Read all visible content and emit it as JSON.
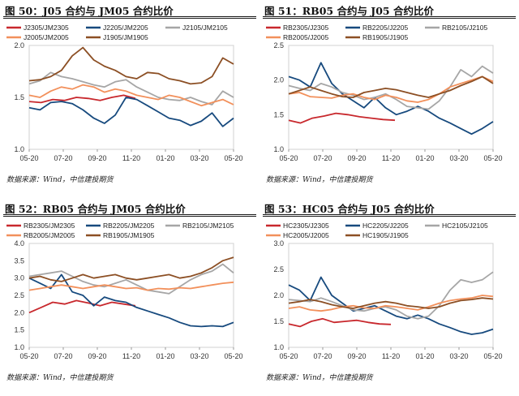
{
  "source_label": "数据来源：Wind，中信建投期货",
  "colors": {
    "s1": "#c8282d",
    "s2": "#174a7e",
    "s3": "#a6a6a6",
    "s4": "#f2905b",
    "s5": "#8c4f24"
  },
  "chart_data": [
    {
      "type": "line",
      "title": "图 50：J05 合约与 JM05 合约比价",
      "ylim": [
        1.0,
        2.0
      ],
      "yticks": [
        "1.0",
        "1.5",
        "2.0"
      ],
      "xticks": [
        "05-20",
        "07-20",
        "09-20",
        "11-20",
        "01-20",
        "03-20",
        "05-20"
      ],
      "series": [
        {
          "name": "J2305/JM2305",
          "end": 0.52,
          "values": [
            1.46,
            1.45,
            1.48,
            1.47,
            1.5,
            1.49,
            1.47,
            1.5,
            1.52,
            1.49
          ]
        },
        {
          "name": "J2205/JM2205",
          "end": 1.0,
          "values": [
            1.4,
            1.38,
            1.45,
            1.46,
            1.44,
            1.38,
            1.3,
            1.25,
            1.33,
            1.5,
            1.48,
            1.42,
            1.36,
            1.3,
            1.28,
            1.23,
            1.27,
            1.35,
            1.22,
            1.3
          ]
        },
        {
          "name": "J2105/JM2105",
          "end": 1.0,
          "values": [
            1.63,
            1.66,
            1.74,
            1.7,
            1.68,
            1.65,
            1.62,
            1.6,
            1.65,
            1.67,
            1.6,
            1.55,
            1.5,
            1.48,
            1.47,
            1.5,
            1.46,
            1.43,
            1.56,
            1.5
          ]
        },
        {
          "name": "J2005/JM2005",
          "end": 1.0,
          "values": [
            1.52,
            1.5,
            1.56,
            1.6,
            1.58,
            1.62,
            1.6,
            1.55,
            1.58,
            1.56,
            1.52,
            1.5,
            1.48,
            1.52,
            1.5,
            1.46,
            1.42,
            1.45,
            1.48,
            1.43
          ]
        },
        {
          "name": "J1905/JM1905",
          "end": 1.0,
          "values": [
            1.66,
            1.67,
            1.7,
            1.76,
            1.9,
            1.98,
            1.86,
            1.8,
            1.76,
            1.7,
            1.68,
            1.74,
            1.73,
            1.68,
            1.66,
            1.63,
            1.64,
            1.7,
            1.88,
            1.82
          ]
        }
      ]
    },
    {
      "type": "line",
      "title": "图 51：RB05 合约与 J05 合约比价",
      "ylim": [
        1.0,
        2.5
      ],
      "yticks": [
        "1.0",
        "1.5",
        "2.0",
        "2.5"
      ],
      "xticks": [
        "05-20",
        "07-20",
        "09-20",
        "11-20",
        "01-20",
        "03-20",
        "05-20"
      ],
      "series": [
        {
          "name": "RB2305/J2305",
          "end": 0.52,
          "values": [
            1.42,
            1.38,
            1.45,
            1.48,
            1.52,
            1.5,
            1.47,
            1.45,
            1.43,
            1.42
          ]
        },
        {
          "name": "RB2205/J2205",
          "end": 1.0,
          "values": [
            2.05,
            2.0,
            1.9,
            2.25,
            1.95,
            1.8,
            1.7,
            1.6,
            1.75,
            1.6,
            1.5,
            1.55,
            1.62,
            1.55,
            1.45,
            1.38,
            1.3,
            1.22,
            1.3,
            1.4
          ]
        },
        {
          "name": "RB2105/J2105",
          "end": 1.0,
          "values": [
            1.92,
            1.88,
            1.85,
            1.95,
            1.9,
            1.82,
            1.78,
            1.72,
            1.75,
            1.8,
            1.72,
            1.62,
            1.6,
            1.58,
            1.7,
            1.9,
            2.15,
            2.05,
            2.2,
            2.1
          ]
        },
        {
          "name": "RB2005/J2005",
          "end": 1.0,
          "values": [
            1.8,
            1.82,
            1.76,
            1.75,
            1.74,
            1.78,
            1.8,
            1.75,
            1.72,
            1.78,
            1.75,
            1.7,
            1.68,
            1.72,
            1.8,
            1.9,
            1.95,
            2.0,
            2.05,
            1.98
          ]
        },
        {
          "name": "RB1905/J1905",
          "end": 1.0,
          "values": [
            1.8,
            1.85,
            1.9,
            1.85,
            1.8,
            1.76,
            1.75,
            1.82,
            1.85,
            1.88,
            1.86,
            1.82,
            1.78,
            1.75,
            1.8,
            1.85,
            1.92,
            1.98,
            2.05,
            1.95
          ]
        }
      ]
    },
    {
      "type": "line",
      "title": "图 52：RB05 合约与 JM05 合约比价",
      "ylim": [
        1.0,
        4.0
      ],
      "yticks": [
        "1.0",
        "1.5",
        "2.0",
        "2.5",
        "3.0",
        "3.5",
        "4.0"
      ],
      "xticks": [
        "05-20",
        "07-20",
        "09-20",
        "11-20",
        "01-20",
        "03-20",
        "05-20"
      ],
      "series": [
        {
          "name": "RB2305/JM2305",
          "end": 0.52,
          "values": [
            2.0,
            2.15,
            2.3,
            2.25,
            2.35,
            2.28,
            2.2,
            2.3,
            2.25,
            2.2
          ]
        },
        {
          "name": "RB2205/JM2205",
          "end": 1.0,
          "values": [
            3.0,
            2.85,
            2.7,
            3.1,
            2.6,
            2.5,
            2.2,
            2.45,
            2.35,
            2.3,
            2.15,
            2.05,
            1.95,
            1.85,
            1.72,
            1.62,
            1.6,
            1.62,
            1.6,
            1.72
          ]
        },
        {
          "name": "RB2105/JM2105",
          "end": 1.0,
          "values": [
            3.05,
            3.1,
            3.15,
            3.2,
            3.05,
            2.9,
            2.8,
            2.75,
            2.85,
            2.95,
            2.8,
            2.65,
            2.6,
            2.55,
            2.75,
            2.95,
            3.1,
            3.2,
            3.4,
            3.15
          ]
        },
        {
          "name": "RB2005/JM2005",
          "end": 1.0,
          "values": [
            2.65,
            2.7,
            2.75,
            2.8,
            2.75,
            2.7,
            2.75,
            2.8,
            2.75,
            2.7,
            2.72,
            2.65,
            2.7,
            2.68,
            2.72,
            2.7,
            2.75,
            2.8,
            2.85,
            2.88
          ]
        },
        {
          "name": "RB1905/JM1905",
          "end": 1.0,
          "values": [
            3.0,
            3.05,
            2.95,
            2.9,
            3.0,
            3.1,
            3.0,
            3.05,
            3.1,
            3.0,
            2.95,
            3.0,
            3.05,
            3.1,
            3.0,
            3.05,
            3.15,
            3.3,
            3.5,
            3.6
          ]
        }
      ]
    },
    {
      "type": "line",
      "title": "图 53：HC05 合约与 J05 合约比价",
      "ylim": [
        1.0,
        3.0
      ],
      "yticks": [
        "1.0",
        "1.5",
        "2.0",
        "2.5",
        "3.0"
      ],
      "xticks": [
        "05-20",
        "07-20",
        "09-20",
        "11-20",
        "01-20",
        "03-20",
        "05-20"
      ],
      "series": [
        {
          "name": "HC2305/J2305",
          "end": 0.5,
          "values": [
            1.45,
            1.4,
            1.5,
            1.55,
            1.48,
            1.5,
            1.52,
            1.48,
            1.45,
            1.44
          ]
        },
        {
          "name": "HC2205/J2205",
          "end": 1.0,
          "values": [
            2.2,
            2.1,
            1.9,
            2.35,
            2.0,
            1.85,
            1.7,
            1.75,
            1.8,
            1.7,
            1.6,
            1.55,
            1.62,
            1.55,
            1.45,
            1.38,
            1.3,
            1.25,
            1.28,
            1.35
          ]
        },
        {
          "name": "HC2105/J2105",
          "end": 1.0,
          "values": [
            1.92,
            1.9,
            1.88,
            1.95,
            1.88,
            1.8,
            1.72,
            1.7,
            1.75,
            1.78,
            1.72,
            1.6,
            1.55,
            1.6,
            1.8,
            2.1,
            2.3,
            2.25,
            2.3,
            2.45
          ]
        },
        {
          "name": "HC2005/J2005",
          "end": 1.0,
          "values": [
            1.75,
            1.78,
            1.72,
            1.7,
            1.73,
            1.78,
            1.8,
            1.76,
            1.75,
            1.8,
            1.78,
            1.75,
            1.72,
            1.78,
            1.85,
            1.9,
            1.93,
            1.95,
            2.0,
            1.98
          ]
        },
        {
          "name": "HC1905/J1905",
          "end": 1.0,
          "values": [
            1.85,
            1.88,
            1.92,
            1.88,
            1.82,
            1.78,
            1.75,
            1.8,
            1.85,
            1.88,
            1.85,
            1.8,
            1.78,
            1.75,
            1.78,
            1.85,
            1.9,
            1.92,
            1.95,
            1.93
          ]
        }
      ]
    }
  ]
}
